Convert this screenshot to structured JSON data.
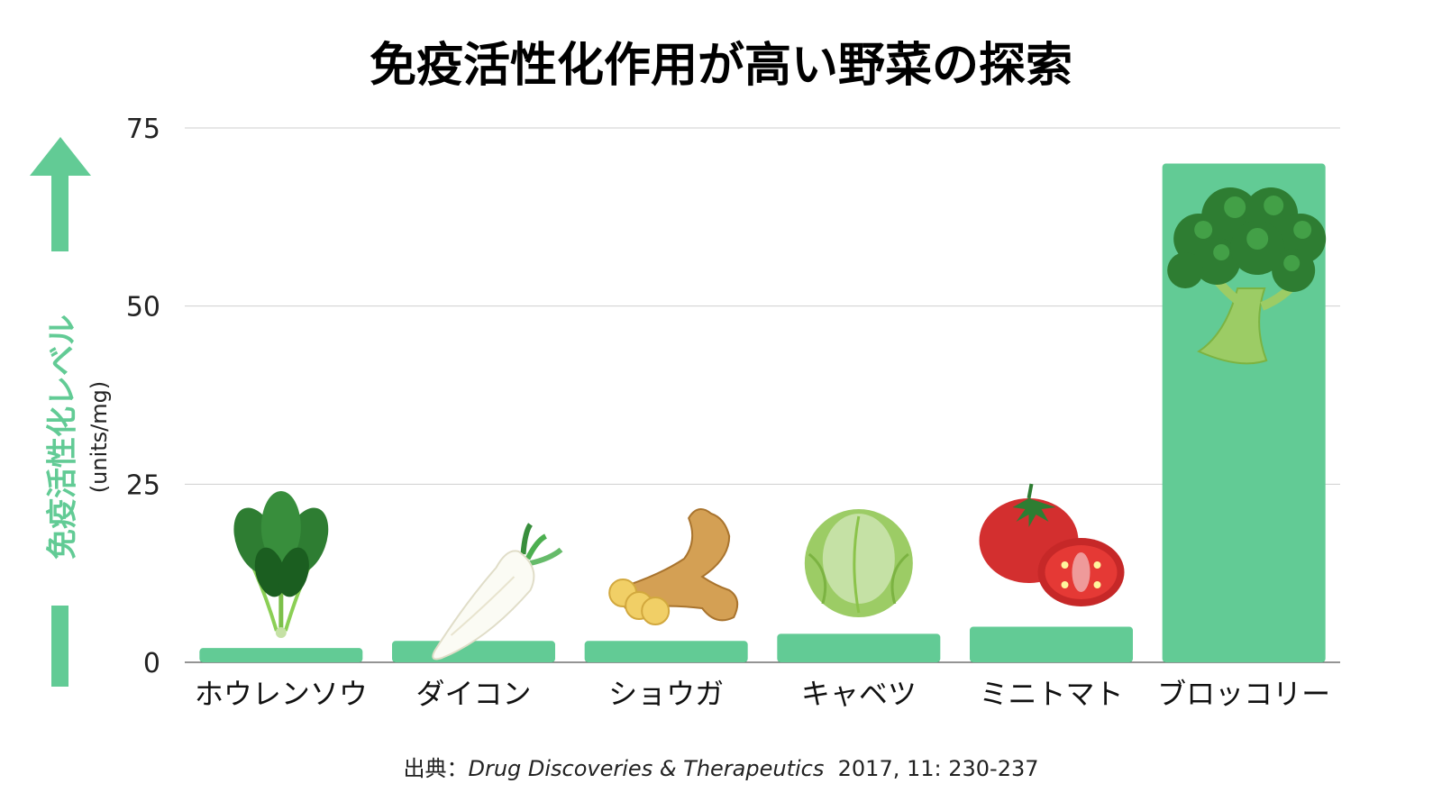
{
  "colors": {
    "bar": "#62cb95",
    "grid": "#cfcfcf",
    "axis": "#555555",
    "title": "#000000"
  },
  "chart_data": {
    "type": "bar",
    "title": "免疫活性化作用が高い野菜の探索",
    "ylabel": "免疫活性化レベル",
    "yunit": "(units/mg)",
    "categories": [
      "ホウレンソウ",
      "ダイコン",
      "ショウガ",
      "キャベツ",
      "ミニトマト",
      "ブロッコリー"
    ],
    "values": [
      2,
      3,
      3,
      4,
      5,
      70
    ],
    "ylim": [
      0,
      75
    ],
    "yticks": [
      0,
      25,
      50,
      75
    ],
    "grid": true,
    "icons": [
      "spinach-icon",
      "daikon-icon",
      "ginger-icon",
      "cabbage-icon",
      "tomato-icon",
      "broccoli-icon"
    ]
  },
  "source": {
    "prefix": "出典：",
    "journal": "Drug Discoveries & Therapeutics",
    "citation": "2017, 11: 230-237"
  }
}
